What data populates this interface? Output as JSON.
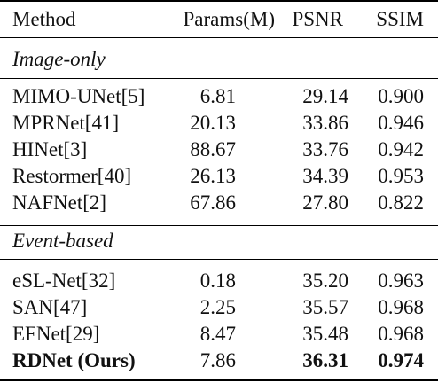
{
  "header": {
    "method": "Method",
    "params": "Params(M)",
    "psnr": "PSNR",
    "ssim": "SSIM"
  },
  "sections": [
    {
      "title": "Image-only",
      "rows": [
        {
          "method": "MIMO-UNet[5]",
          "params": "6.81",
          "psnr": "29.14",
          "ssim": "0.900"
        },
        {
          "method": "MPRNet[41]",
          "params": "20.13",
          "psnr": "33.86",
          "ssim": "0.946"
        },
        {
          "method": "HINet[3]",
          "params": "88.67",
          "psnr": "33.76",
          "ssim": "0.942"
        },
        {
          "method": "Restormer[40]",
          "params": "26.13",
          "psnr": "34.39",
          "ssim": "0.953"
        },
        {
          "method": "NAFNet[2]",
          "params": "67.86",
          "psnr": "27.80",
          "ssim": "0.822"
        }
      ]
    },
    {
      "title": "Event-based",
      "rows": [
        {
          "method": "eSL-Net[32]",
          "params": "0.18",
          "psnr": "35.20",
          "ssim": "0.963"
        },
        {
          "method": "SAN[47]",
          "params": "2.25",
          "psnr": "35.57",
          "ssim": "0.968"
        },
        {
          "method": "EFNet[29]",
          "params": "8.47",
          "psnr": "35.48",
          "ssim": "0.968"
        },
        {
          "method": "RDNet (Ours)",
          "params": "7.86",
          "psnr": "36.31",
          "ssim": "0.974"
        }
      ]
    }
  ]
}
